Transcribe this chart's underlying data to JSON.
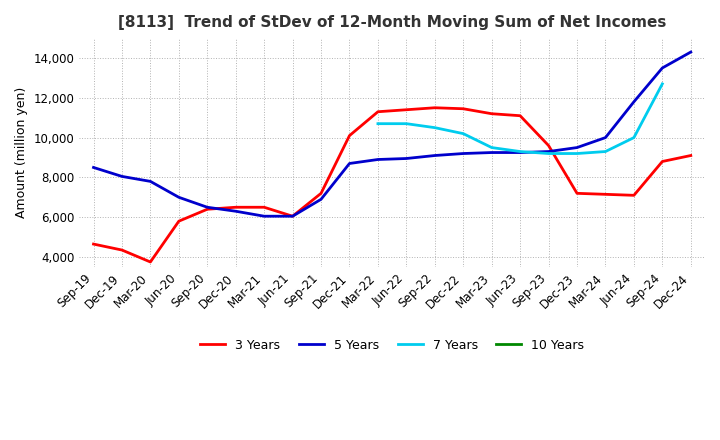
{
  "title": "[8113]  Trend of StDev of 12-Month Moving Sum of Net Incomes",
  "ylabel": "Amount (million yen)",
  "ylim": [
    3500,
    15000
  ],
  "yticks": [
    4000,
    6000,
    8000,
    10000,
    12000,
    14000
  ],
  "background_color": "#ffffff",
  "grid_color": "#aaaaaa",
  "series": {
    "3 Years": {
      "color": "#ff0000",
      "data": [
        [
          "Sep-19",
          4650
        ],
        [
          "Dec-19",
          4350
        ],
        [
          "Mar-20",
          3750
        ],
        [
          "Jun-20",
          5800
        ],
        [
          "Sep-20",
          6400
        ],
        [
          "Dec-20",
          6500
        ],
        [
          "Mar-21",
          6500
        ],
        [
          "Jun-21",
          6050
        ],
        [
          "Sep-21",
          7200
        ],
        [
          "Dec-21",
          10100
        ],
        [
          "Mar-22",
          11300
        ],
        [
          "Jun-22",
          11400
        ],
        [
          "Sep-22",
          11500
        ],
        [
          "Dec-22",
          11450
        ],
        [
          "Mar-23",
          11200
        ],
        [
          "Jun-23",
          11100
        ],
        [
          "Sep-23",
          9600
        ],
        [
          "Dec-23",
          7200
        ],
        [
          "Mar-24",
          7150
        ],
        [
          "Jun-24",
          7100
        ],
        [
          "Sep-24",
          8800
        ],
        [
          "Dec-24",
          9100
        ]
      ]
    },
    "5 Years": {
      "color": "#0000cc",
      "data": [
        [
          "Sep-19",
          8500
        ],
        [
          "Dec-19",
          8050
        ],
        [
          "Mar-20",
          7800
        ],
        [
          "Jun-20",
          7000
        ],
        [
          "Sep-20",
          6500
        ],
        [
          "Dec-20",
          6300
        ],
        [
          "Mar-21",
          6050
        ],
        [
          "Jun-21",
          6050
        ],
        [
          "Sep-21",
          6900
        ],
        [
          "Dec-21",
          8700
        ],
        [
          "Mar-22",
          8900
        ],
        [
          "Jun-22",
          8950
        ],
        [
          "Sep-22",
          9100
        ],
        [
          "Dec-22",
          9200
        ],
        [
          "Mar-23",
          9250
        ],
        [
          "Jun-23",
          9250
        ],
        [
          "Sep-23",
          9300
        ],
        [
          "Dec-23",
          9500
        ],
        [
          "Mar-24",
          10000
        ],
        [
          "Jun-24",
          11800
        ],
        [
          "Sep-24",
          13500
        ],
        [
          "Dec-24",
          14300
        ]
      ]
    },
    "7 Years": {
      "color": "#00ccee",
      "data": [
        [
          "Sep-19",
          null
        ],
        [
          "Dec-19",
          null
        ],
        [
          "Mar-20",
          null
        ],
        [
          "Jun-20",
          null
        ],
        [
          "Sep-20",
          null
        ],
        [
          "Dec-20",
          null
        ],
        [
          "Mar-21",
          null
        ],
        [
          "Jun-21",
          null
        ],
        [
          "Sep-21",
          null
        ],
        [
          "Dec-21",
          null
        ],
        [
          "Mar-22",
          10700
        ],
        [
          "Jun-22",
          10700
        ],
        [
          "Sep-22",
          10500
        ],
        [
          "Dec-22",
          10200
        ],
        [
          "Mar-23",
          9500
        ],
        [
          "Jun-23",
          9300
        ],
        [
          "Sep-23",
          9200
        ],
        [
          "Dec-23",
          9200
        ],
        [
          "Mar-24",
          9300
        ],
        [
          "Jun-24",
          10000
        ],
        [
          "Sep-24",
          12700
        ],
        [
          "Dec-24",
          null
        ]
      ]
    },
    "10 Years": {
      "color": "#008800",
      "data": [
        [
          "Sep-19",
          null
        ],
        [
          "Dec-19",
          null
        ],
        [
          "Mar-20",
          null
        ],
        [
          "Jun-20",
          null
        ],
        [
          "Sep-20",
          null
        ],
        [
          "Dec-20",
          null
        ],
        [
          "Mar-21",
          null
        ],
        [
          "Jun-21",
          null
        ],
        [
          "Sep-21",
          null
        ],
        [
          "Dec-21",
          null
        ],
        [
          "Mar-22",
          null
        ],
        [
          "Jun-22",
          null
        ],
        [
          "Sep-22",
          null
        ],
        [
          "Dec-22",
          null
        ],
        [
          "Mar-23",
          null
        ],
        [
          "Jun-23",
          null
        ],
        [
          "Sep-23",
          null
        ],
        [
          "Dec-23",
          null
        ],
        [
          "Mar-24",
          null
        ],
        [
          "Jun-24",
          null
        ],
        [
          "Sep-24",
          null
        ],
        [
          "Dec-24",
          null
        ]
      ]
    }
  },
  "xtick_labels": [
    "Sep-19",
    "Dec-19",
    "Mar-20",
    "Jun-20",
    "Sep-20",
    "Dec-20",
    "Mar-21",
    "Jun-21",
    "Sep-21",
    "Dec-21",
    "Mar-22",
    "Jun-22",
    "Sep-22",
    "Dec-22",
    "Mar-23",
    "Jun-23",
    "Sep-23",
    "Dec-23",
    "Mar-24",
    "Jun-24",
    "Sep-24",
    "Dec-24"
  ],
  "legend_order": [
    "3 Years",
    "5 Years",
    "7 Years",
    "10 Years"
  ]
}
